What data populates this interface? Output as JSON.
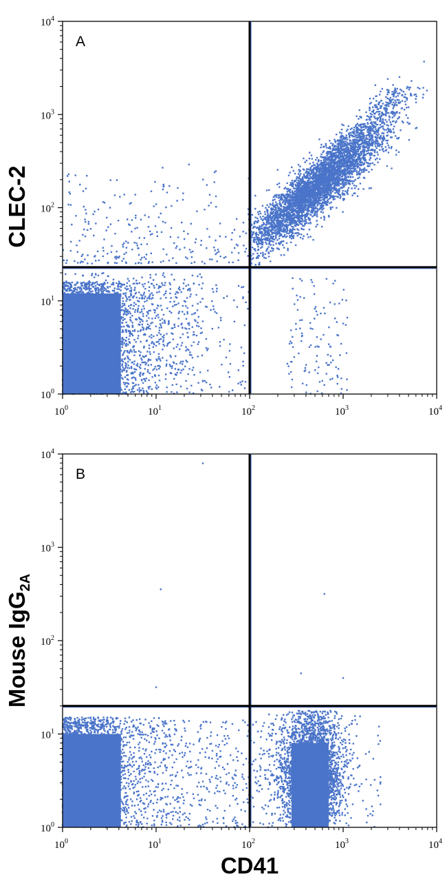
{
  "chart_data": [
    {
      "type": "scatter",
      "panel_label": "A",
      "xlabel": "",
      "ylabel": "CLEC-2",
      "x_scale": "log",
      "y_scale": "log",
      "xlim": [
        1,
        10000
      ],
      "ylim": [
        1,
        10000
      ],
      "x_ticks": [
        {
          "base": "10",
          "exp": "0"
        },
        {
          "base": "10",
          "exp": "1"
        },
        {
          "base": "10",
          "exp": "2"
        },
        {
          "base": "10",
          "exp": "3"
        },
        {
          "base": "10",
          "exp": "4"
        }
      ],
      "y_ticks": [
        {
          "base": "10",
          "exp": "0"
        },
        {
          "base": "10",
          "exp": "1"
        },
        {
          "base": "10",
          "exp": "2"
        },
        {
          "base": "10",
          "exp": "3"
        },
        {
          "base": "10",
          "exp": "4"
        }
      ],
      "quadrant_gates": {
        "x": 100,
        "y": 23
      },
      "point_color": "#4a74c9",
      "populations": [
        {
          "region": "lower-left",
          "x_range": [
            1,
            7
          ],
          "y_range": [
            1,
            20
          ],
          "density": "very high"
        },
        {
          "region": "upper-right",
          "x_range": [
            200,
            4500
          ],
          "y_range": [
            40,
            1700
          ],
          "center": [
            500,
            150
          ],
          "density": "high"
        },
        {
          "region": "lower-right",
          "x_range": [
            250,
            1000
          ],
          "y_range": [
            1,
            20
          ],
          "density": "sparse"
        },
        {
          "region": "upper-left",
          "x_range": [
            1,
            100
          ],
          "y_range": [
            23,
            400
          ],
          "density": "sparse"
        }
      ]
    },
    {
      "type": "scatter",
      "panel_label": "B",
      "xlabel": "CD41",
      "ylabel_main": "Mouse IgG",
      "ylabel_sub": "2A",
      "x_scale": "log",
      "y_scale": "log",
      "xlim": [
        1,
        10000
      ],
      "ylim": [
        1,
        10000
      ],
      "x_ticks": [
        {
          "base": "10",
          "exp": "0"
        },
        {
          "base": "10",
          "exp": "1"
        },
        {
          "base": "10",
          "exp": "2"
        },
        {
          "base": "10",
          "exp": "3"
        },
        {
          "base": "10",
          "exp": "4"
        }
      ],
      "y_ticks": [
        {
          "base": "10",
          "exp": "0"
        },
        {
          "base": "10",
          "exp": "1"
        },
        {
          "base": "10",
          "exp": "2"
        },
        {
          "base": "10",
          "exp": "3"
        },
        {
          "base": "10",
          "exp": "4"
        }
      ],
      "quadrant_gates": {
        "x": 100,
        "y": 20
      },
      "point_color": "#4a74c9",
      "populations": [
        {
          "region": "lower-left",
          "x_range": [
            1,
            7
          ],
          "y_range": [
            1,
            18
          ],
          "density": "very high"
        },
        {
          "region": "lower-right",
          "x_range": [
            200,
            1500
          ],
          "y_range": [
            1,
            18
          ],
          "center": [
            450,
            4
          ],
          "density": "very high"
        },
        {
          "region": "lower-middle",
          "x_range": [
            7,
            100
          ],
          "y_range": [
            1,
            15
          ],
          "density": "sparse"
        }
      ]
    }
  ]
}
